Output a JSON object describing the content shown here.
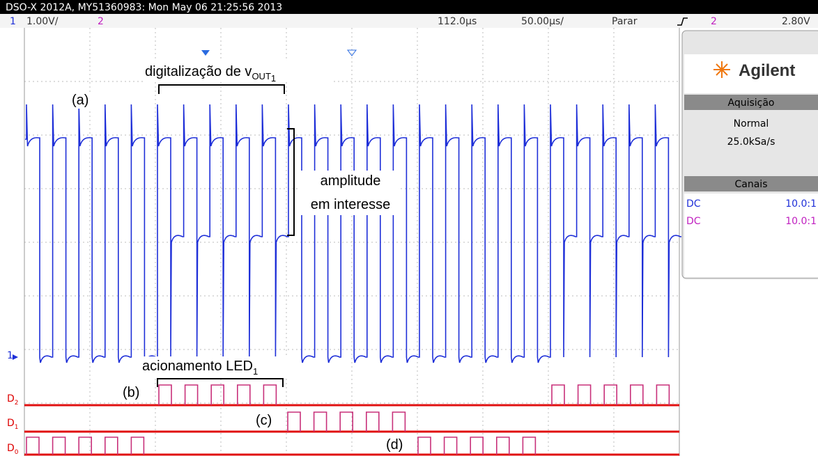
{
  "header": {
    "title": "DSO-X 2012A, MY51360983: Mon May 06 21:25:56 2013"
  },
  "status_bar": {
    "channel1": "1",
    "channel1_scale": "1.00V/",
    "channel2": "2",
    "delay": "112.0µs",
    "timebase": "50.00µs/",
    "run_state": "Parar",
    "trigger_channel": "2",
    "trigger_level": "2.80V"
  },
  "side_panel": {
    "brand": "Agilent",
    "acquisition": {
      "title": "Aquisição",
      "mode": "Normal",
      "rate": "25.0kSa/s"
    },
    "channels": {
      "title": "Canais",
      "rows": [
        [
          "DC",
          "10.0:1"
        ],
        [
          "DC",
          "10.0:1"
        ]
      ]
    }
  },
  "display": {
    "ground_marker": "1",
    "digital_labels": [
      {
        "name": "D",
        "index": "2"
      },
      {
        "name": "D",
        "index": "1"
      },
      {
        "name": "D",
        "index": "0"
      }
    ]
  },
  "annotations": {
    "digitization": {
      "text": "digitalização de v",
      "sub": "OUT",
      "sub_index": "1"
    },
    "a": "(a)",
    "amplitude": [
      "amplitude",
      "em interesse"
    ],
    "led": {
      "text": "acionamento LED",
      "sub": "1"
    },
    "b": "(b)",
    "c": "(c)",
    "d": "(d)"
  }
}
